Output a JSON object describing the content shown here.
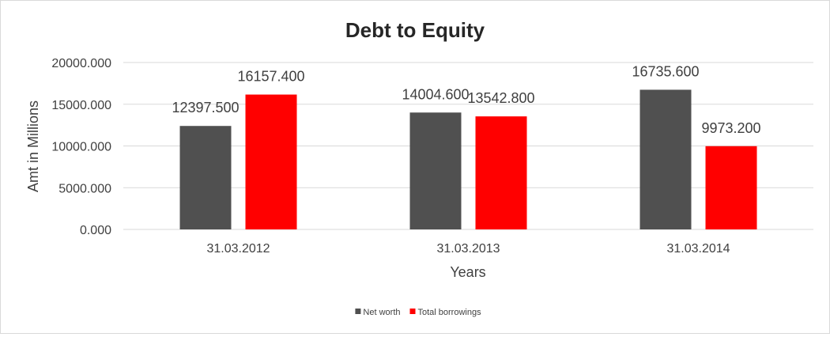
{
  "chart_data": {
    "type": "bar",
    "title": "Debt to Equity",
    "xlabel": "Years",
    "ylabel": "Amt in Millions",
    "categories": [
      "31.03.2012",
      "31.03.2013",
      "31.03.2014"
    ],
    "series": [
      {
        "name": "Net worth",
        "color": "#505050",
        "values": [
          12397.5,
          14004.6,
          16735.6
        ],
        "labels": [
          "12397.500",
          "14004.600",
          "16735.600"
        ]
      },
      {
        "name": "Total borrowings",
        "color": "#ff0000",
        "values": [
          16157.4,
          13542.8,
          9973.2
        ],
        "labels": [
          "16157.400",
          "13542.800",
          "9973.200"
        ]
      }
    ],
    "ylim": [
      0,
      20000
    ],
    "yticks": [
      0,
      5000,
      10000,
      15000,
      20000
    ],
    "ytick_labels": [
      "0.000",
      "5000.000",
      "10000.000",
      "15000.000",
      "20000.000"
    ],
    "grid": true,
    "legend_position": "bottom"
  }
}
